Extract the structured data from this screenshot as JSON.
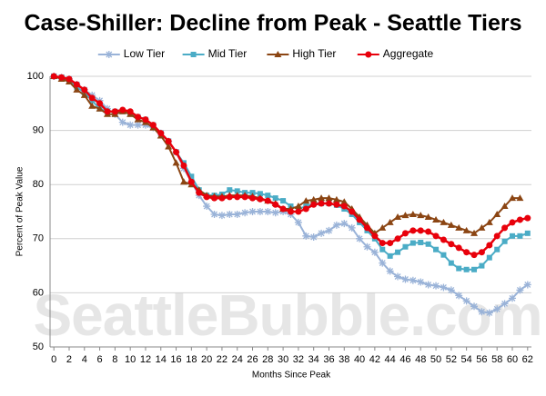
{
  "chart_data": {
    "type": "line",
    "title": "Case-Shiller: Decline from Peak - Seattle Tiers",
    "x_label": "Months Since Peak",
    "y_label": "Percent of Peak Value",
    "watermark": "SeattleBubble.com",
    "x": [
      0,
      1,
      2,
      3,
      4,
      5,
      6,
      7,
      8,
      9,
      10,
      11,
      12,
      13,
      14,
      15,
      16,
      17,
      18,
      19,
      20,
      21,
      22,
      23,
      24,
      25,
      26,
      27,
      28,
      29,
      30,
      31,
      32,
      33,
      34,
      35,
      36,
      37,
      38,
      39,
      40,
      41,
      42,
      43,
      44,
      45,
      46,
      47,
      48,
      49,
      50,
      51,
      52,
      53,
      54,
      55,
      56,
      57,
      58,
      59,
      60,
      61,
      62
    ],
    "xlim": [
      -0.5,
      62.5
    ],
    "xticks": [
      0,
      2,
      4,
      6,
      8,
      10,
      12,
      14,
      16,
      18,
      20,
      22,
      24,
      26,
      28,
      30,
      32,
      34,
      36,
      38,
      40,
      42,
      44,
      46,
      48,
      50,
      52,
      54,
      56,
      58,
      60,
      62
    ],
    "ylim": [
      50,
      100
    ],
    "yticks": [
      50,
      60,
      70,
      80,
      90,
      100
    ],
    "grid": true,
    "legend": "top",
    "series": [
      {
        "name": "Low Tier",
        "color": "#9ab3d8",
        "marker": "star",
        "values": [
          100,
          99.8,
          99.5,
          98.5,
          97.5,
          96.5,
          95.5,
          94,
          93,
          91.5,
          91,
          91,
          91,
          90.5,
          89.5,
          88,
          86,
          83,
          80.5,
          78,
          76,
          74.5,
          74.3,
          74.5,
          74.5,
          74.8,
          75,
          75,
          75,
          74.8,
          75,
          74.5,
          73,
          70.5,
          70.3,
          71,
          71.5,
          72.5,
          72.8,
          72,
          70,
          68.5,
          67.5,
          65.5,
          64,
          63,
          62.5,
          62.3,
          62,
          61.5,
          61.3,
          61,
          60.5,
          59.5,
          58.5,
          57.5,
          56.5,
          56.3,
          57,
          58,
          59,
          60.5,
          61.5
        ]
      },
      {
        "name": "Mid Tier",
        "color": "#4bacc6",
        "marker": "square",
        "values": [
          100,
          99.8,
          99.3,
          98,
          97,
          95.5,
          94,
          93.5,
          93.5,
          93.5,
          93,
          92.5,
          92,
          91,
          89.5,
          88,
          86,
          84,
          81.5,
          79,
          78,
          78,
          78.2,
          79,
          78.8,
          78.5,
          78.5,
          78.3,
          78,
          77.5,
          77,
          76,
          75.5,
          76,
          76.5,
          76.5,
          76.5,
          76.2,
          75.5,
          74.5,
          73,
          71.5,
          70,
          68,
          66.8,
          67.5,
          68.5,
          69.2,
          69.3,
          69,
          68,
          67,
          65.5,
          64.5,
          64.3,
          64.3,
          65,
          66.5,
          68,
          69.5,
          70.5,
          70.5,
          71
        ]
      },
      {
        "name": "High Tier",
        "color": "#8b4513",
        "marker": "triangle",
        "values": [
          100,
          99.5,
          99,
          97.5,
          96.5,
          94.5,
          94,
          93,
          93,
          93.5,
          93,
          92,
          91.5,
          90.5,
          89,
          87,
          84,
          80.5,
          80,
          79,
          78,
          77.8,
          77.8,
          78,
          78,
          78,
          77.8,
          77.5,
          77,
          76.5,
          75.5,
          75.5,
          76,
          77,
          77.2,
          77.5,
          77.5,
          77.2,
          76.8,
          75.5,
          74,
          72.5,
          71,
          72,
          73,
          74,
          74.3,
          74.5,
          74.3,
          74,
          73.5,
          73,
          72.5,
          72,
          71.5,
          71,
          72,
          73,
          74.5,
          76,
          77.5,
          77.5,
          null
        ]
      },
      {
        "name": "Aggregate",
        "color": "#e8000b",
        "marker": "circle",
        "values": [
          100,
          99.8,
          99.5,
          98.5,
          97.5,
          96,
          95,
          93.5,
          93.5,
          93.8,
          93.5,
          92.5,
          92,
          91,
          89.5,
          88,
          86,
          83.5,
          80.5,
          78.5,
          77.7,
          77.5,
          77.5,
          77.7,
          77.7,
          77.7,
          77.5,
          77.3,
          77,
          76.3,
          75.5,
          75,
          75,
          75.5,
          76.3,
          76.5,
          76.5,
          76.3,
          76,
          75,
          73.5,
          72,
          70.5,
          69.2,
          69.2,
          70,
          71,
          71.5,
          71.5,
          71.3,
          70.5,
          69.8,
          69,
          68.3,
          67.5,
          67,
          67.5,
          68.8,
          70.5,
          72,
          73,
          73.5,
          73.8
        ]
      }
    ]
  }
}
